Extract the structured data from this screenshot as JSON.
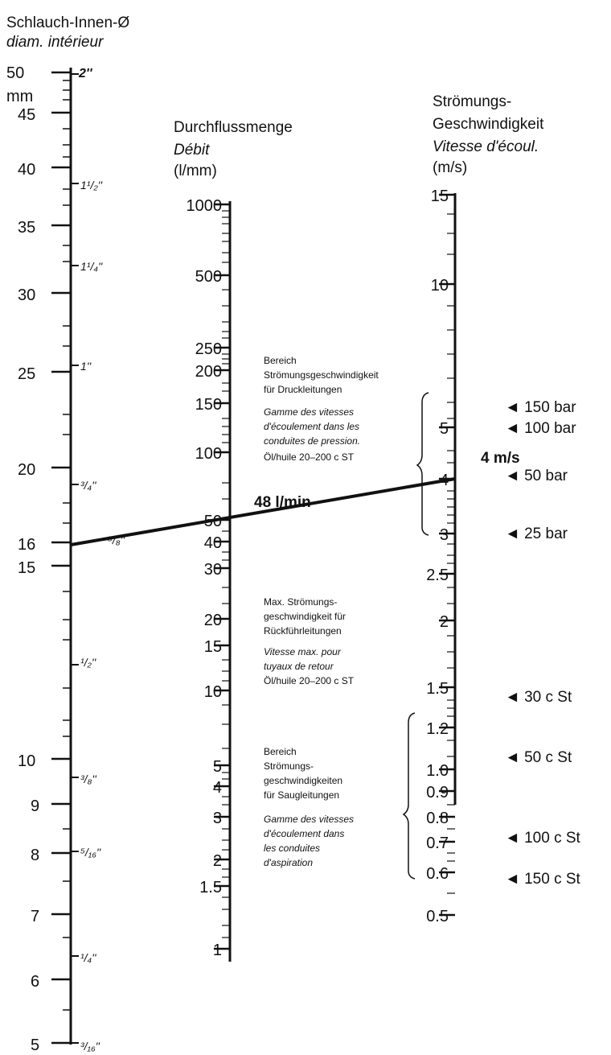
{
  "scale_diameter": {
    "title_de": "Schlauch-Innen-Ø",
    "title_fr": "diam. intérieur",
    "unit": "mm",
    "labels": [
      "50",
      "45",
      "40",
      "35",
      "30",
      "25",
      "20",
      "16",
      "15",
      "10",
      "9",
      "8",
      "7",
      "6",
      "5"
    ],
    "inch_labels": [
      "2''",
      "1¹/₂''",
      "1¹/₄''",
      "1''",
      "³/₄''",
      "⁵/₈''",
      "¹/₂''",
      "³/₈''",
      "⁵/₁₆''",
      "¹/₄''",
      "³/₁₆''"
    ]
  },
  "scale_flow": {
    "title_de": "Durchflussmenge",
    "title_fr": "Débit",
    "unit": "(l/mm)",
    "labels": [
      "1000",
      "500",
      "250",
      "200",
      "150",
      "100",
      "50",
      "40",
      "30",
      "20",
      "15",
      "10",
      "5",
      "4",
      "3",
      "2",
      "1.5",
      "1"
    ]
  },
  "scale_velocity": {
    "title_de_1": "Strömungs-",
    "title_de_2": "Geschwindigkeit",
    "title_fr": "Vitesse d'écoul.",
    "unit": "(m/s)",
    "labels": [
      "15",
      "10",
      "5",
      "4",
      "3",
      "2.5",
      "2",
      "1.5",
      "1.2",
      "1.0",
      "0.9",
      "0.8",
      "0.7",
      "0.6",
      "0.5"
    ],
    "result_label": "4 m/s"
  },
  "result_line": {
    "label": "48 l/min",
    "diameter_mm": 16,
    "flow_l_min": 48,
    "velocity_m_s": 4
  },
  "notes": {
    "pressure": {
      "de": [
        "Bereich",
        "Strömungsgeschwindigkeit",
        "für Druckleitungen"
      ],
      "fr": [
        "Gamme des vitesses",
        "d'écoulement dans les",
        "conduites de pression."
      ],
      "oil": "Öl/huile  20–200 c ST"
    },
    "return": {
      "de": [
        "Max. Strömungs-",
        "geschwindigkeit für",
        "Rückführleitungen"
      ],
      "fr": [
        "Vitesse max. pour",
        "tuyaux de retour"
      ],
      "oil": "Öl/huile  20–200 c ST"
    },
    "suction": {
      "de": [
        "Bereich",
        "Strömungs-",
        "geschwindigkeiten",
        "für Saugleitungen"
      ],
      "fr": [
        "Gamme des vitesses",
        "d'écoulement dans",
        "les conduites",
        "d'aspiration"
      ]
    }
  },
  "markers": [
    "◄ 150 bar",
    "◄ 100 bar",
    "◄ 50 bar",
    "◄ 25 bar",
    "◄ 30 c St",
    "◄ 50 c St",
    "◄ 100 c St",
    "◄ 150 c St"
  ]
}
